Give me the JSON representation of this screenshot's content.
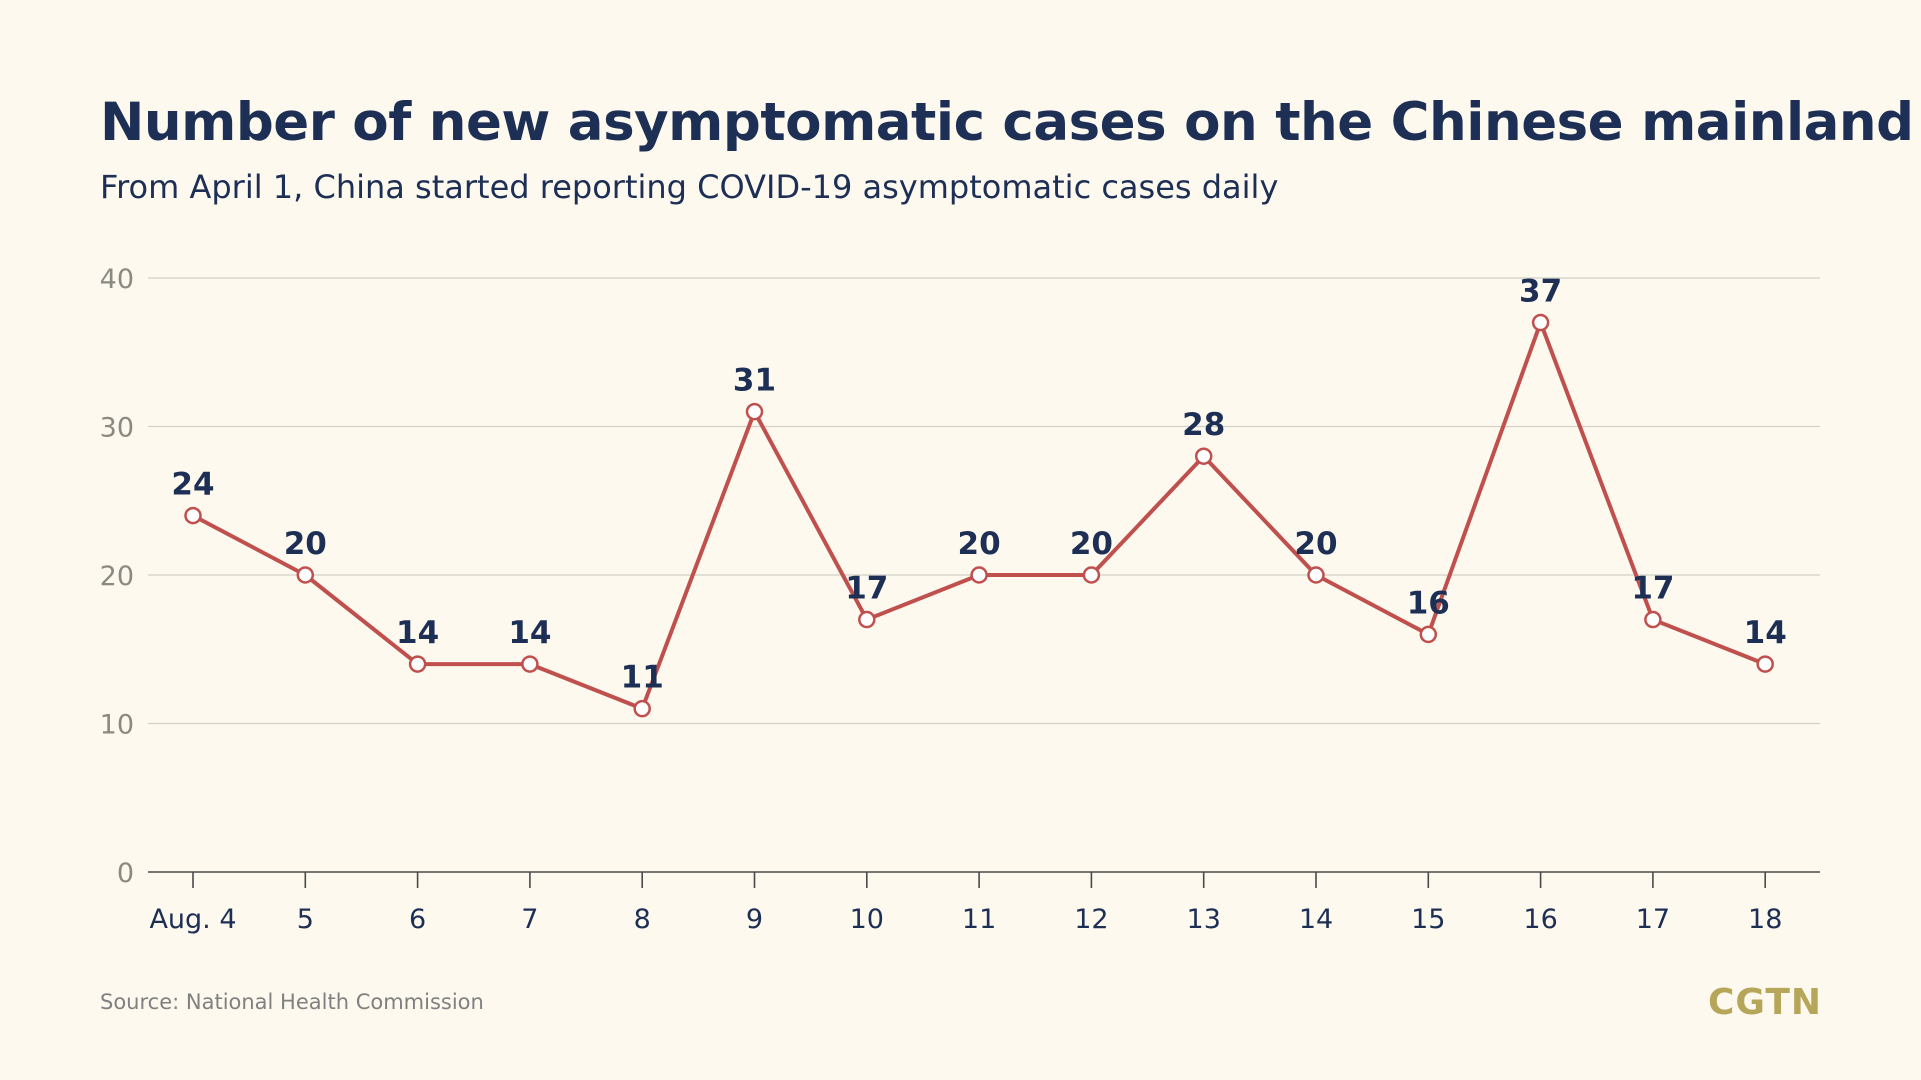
{
  "title": "Number of new asymptomatic cases on the Chinese mainland",
  "subtitle": "From April 1, China started reporting COVID-19 asymptomatic cases daily",
  "source": "Source: National Health Commission",
  "logo": "CGTN",
  "colors": {
    "background": "#fdf9ef",
    "line": "#c0504d",
    "text": "#1d2f54",
    "grid": "#d2d2c8",
    "logo": "#b6a65a"
  },
  "chart_data": {
    "type": "line",
    "title": "Number of new asymptomatic cases on the Chinese mainland",
    "subtitle": "From April 1, China started reporting COVID-19 asymptomatic cases daily",
    "categories": [
      "Aug. 4",
      "5",
      "6",
      "7",
      "8",
      "9",
      "10",
      "11",
      "12",
      "13",
      "14",
      "15",
      "16",
      "17",
      "18"
    ],
    "series": [
      {
        "values": [
          24,
          20,
          14,
          14,
          11,
          31,
          17,
          20,
          20,
          28,
          20,
          16,
          37,
          17,
          14
        ],
        "labels": [
          "24",
          "20",
          "14",
          "14",
          "11",
          "31",
          "17",
          "20",
          "20",
          "28",
          "20",
          "16",
          "37",
          "17",
          "14"
        ]
      }
    ],
    "yticks": [
      "0",
      "10",
      "20",
      "30",
      "40"
    ],
    "ylim": [
      0,
      40
    ],
    "grid": true,
    "xlabel": "",
    "ylabel": ""
  }
}
